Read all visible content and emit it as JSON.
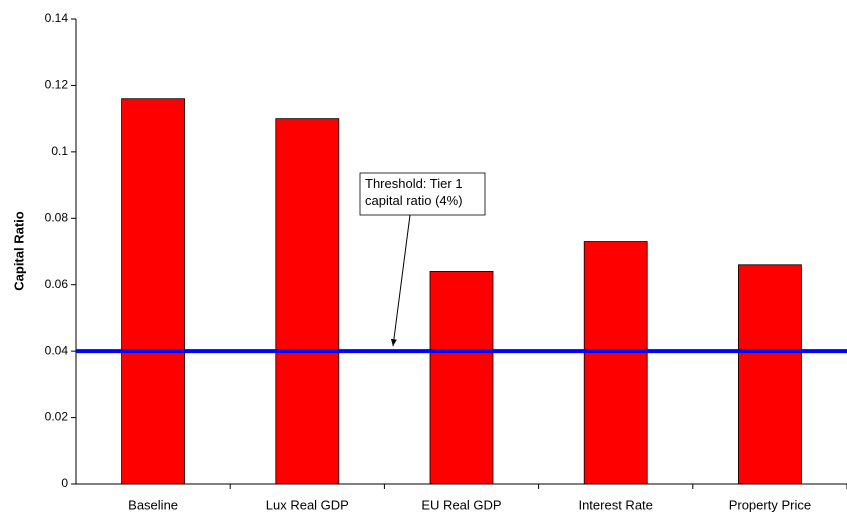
{
  "chart_data": {
    "type": "bar",
    "y_label": "Capital Ratio",
    "categories": [
      "Baseline",
      "Lux Real GDP",
      "EU Real GDP",
      "Interest Rate",
      "Property Price"
    ],
    "values": [
      0.116,
      0.11,
      0.064,
      0.073,
      0.066
    ],
    "color": "#ff0000",
    "ylim": [
      0,
      0.14
    ],
    "yticks": [
      0,
      0.02,
      0.04,
      0.06,
      0.08,
      0.1,
      0.12,
      0.14
    ],
    "grid": false,
    "reference_line": {
      "value": 0.04,
      "color": "#0000ff"
    },
    "annotation": "Threshold: Tier 1 capital ratio (4%)"
  }
}
